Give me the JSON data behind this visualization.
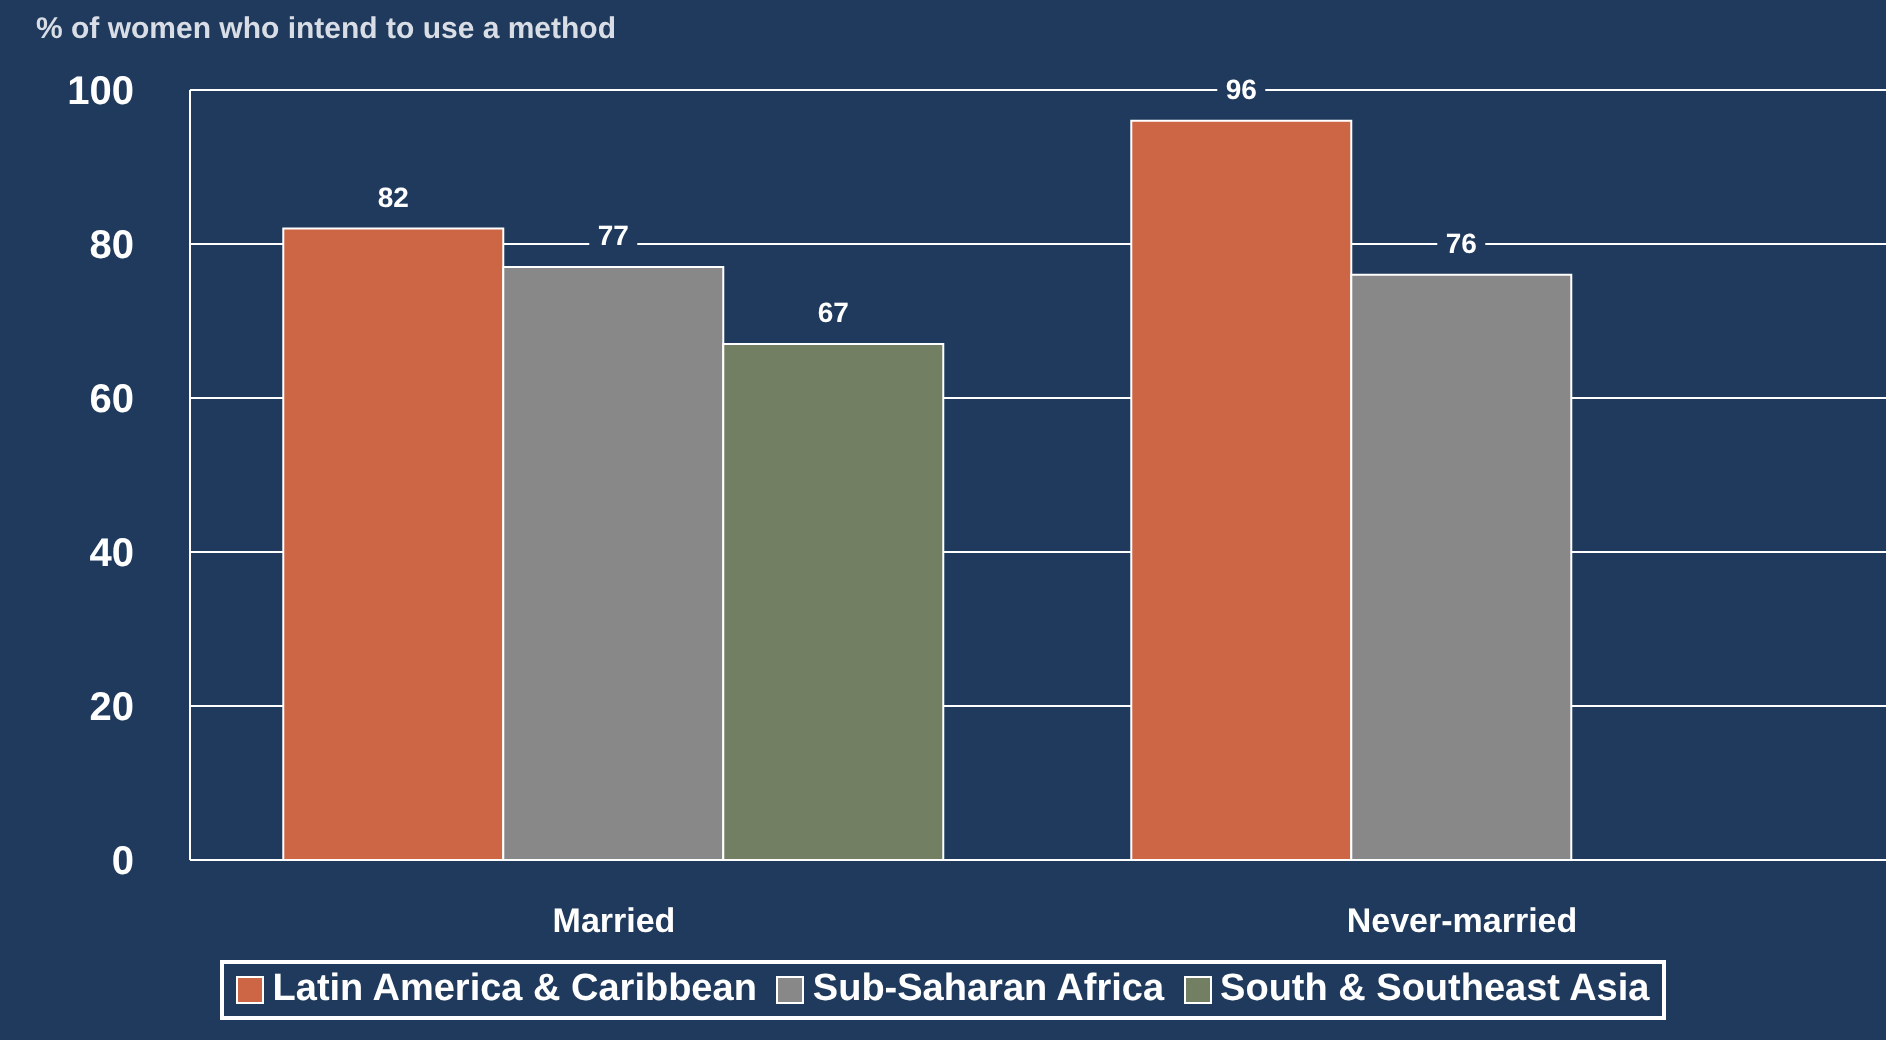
{
  "chart_data": {
    "type": "bar",
    "ylabel": "% of women who intend to use a method",
    "categories": [
      "Married",
      "Never-married"
    ],
    "series": [
      {
        "name": "Latin America & Caribbean",
        "color": "#cc6644",
        "values": [
          82,
          96
        ]
      },
      {
        "name": "Sub-Saharan Africa",
        "color": "#888888",
        "values": [
          77,
          76
        ]
      },
      {
        "name": "South & Southeast Asia",
        "color": "#737f62",
        "values": [
          67,
          null
        ]
      }
    ],
    "ylim": [
      0,
      100
    ],
    "yticks": [
      0,
      20,
      40,
      60,
      80,
      100
    ],
    "grid": "y",
    "data_labels": true,
    "legend": "bottom"
  }
}
